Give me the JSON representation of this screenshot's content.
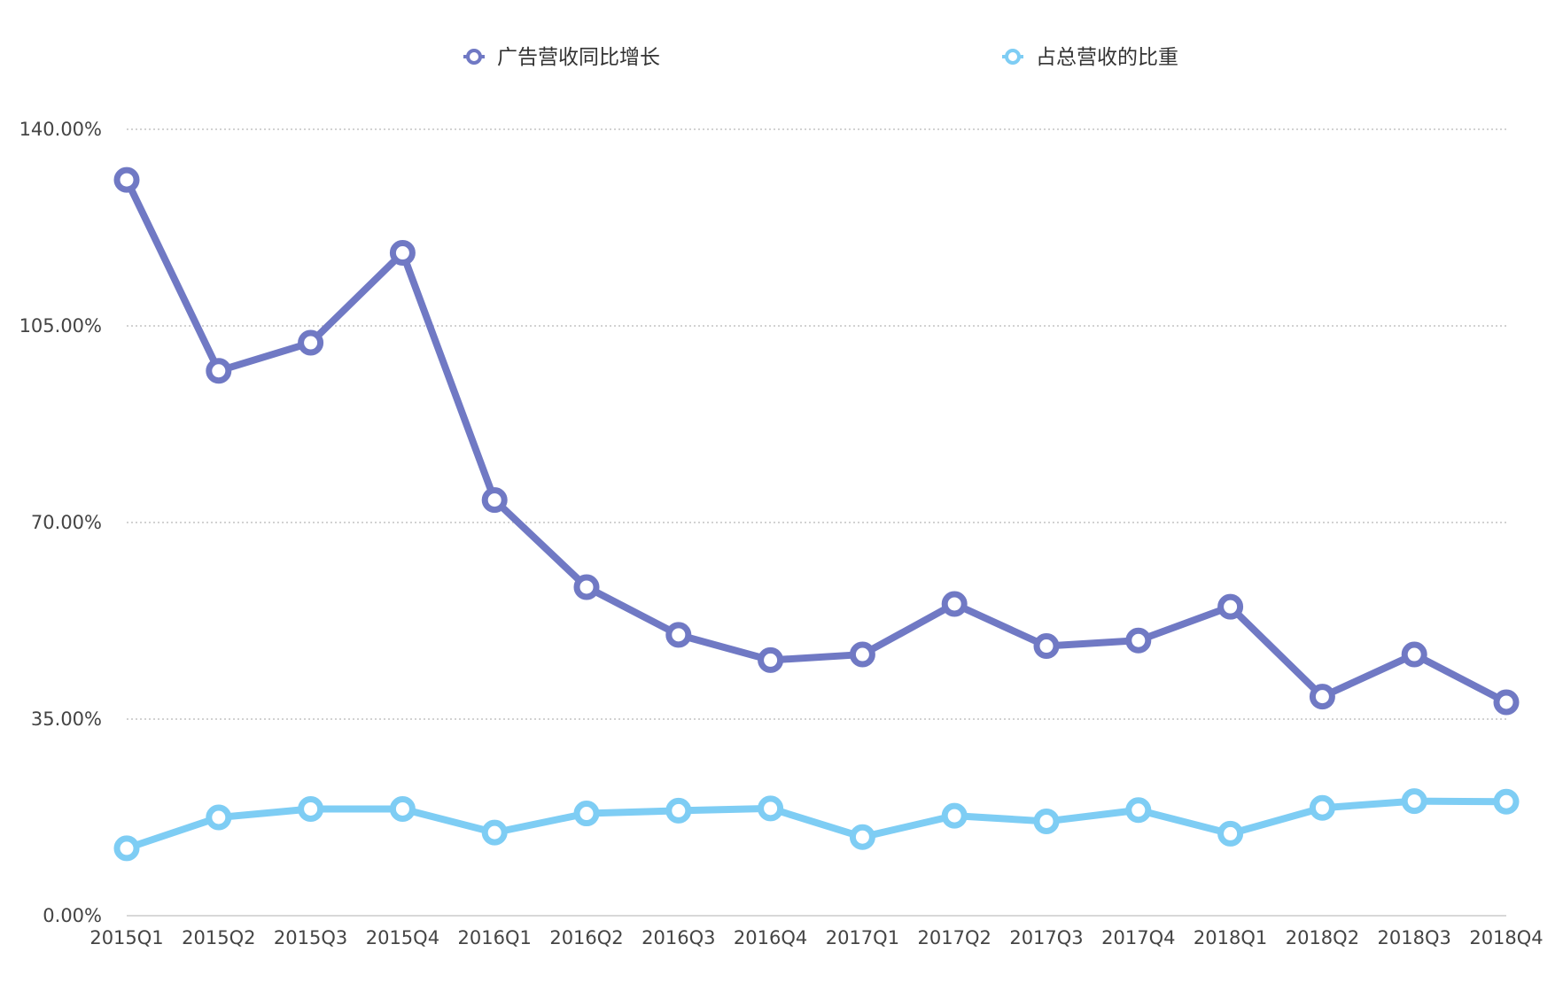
{
  "chart_data": {
    "type": "line",
    "categories": [
      "2015Q1",
      "2015Q2",
      "2015Q3",
      "2015Q4",
      "2016Q1",
      "2016Q2",
      "2016Q3",
      "2016Q4",
      "2017Q1",
      "2017Q2",
      "2017Q3",
      "2017Q4",
      "2018Q1",
      "2018Q2",
      "2018Q3",
      "2018Q4"
    ],
    "series": [
      {
        "name": "广告营收同比增长",
        "color": "#7079c4",
        "values": [
          131.0,
          97.0,
          102.0,
          118.0,
          74.0,
          58.5,
          50.0,
          45.5,
          46.5,
          55.5,
          48.0,
          49.0,
          55.0,
          39.0,
          46.5,
          38.0
        ]
      },
      {
        "name": "占总营收的比重",
        "color": "#7ecdf4",
        "values": [
          12.0,
          17.5,
          19.0,
          19.0,
          14.8,
          18.2,
          18.7,
          19.1,
          14.0,
          17.8,
          16.8,
          18.8,
          14.6,
          19.2,
          20.4,
          20.3
        ]
      }
    ],
    "y_ticks": [
      "0.00%",
      "35.00%",
      "70.00%",
      "105.00%",
      "140.00%"
    ],
    "ylim": [
      0,
      140
    ],
    "grid": true,
    "legend_position": "top"
  }
}
